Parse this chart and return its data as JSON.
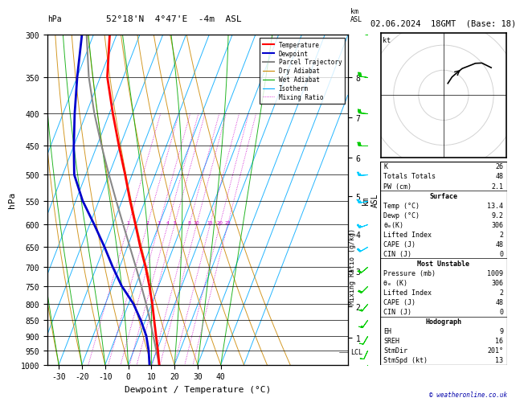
{
  "title_left": "52°18'N  4°47'E  -4m  ASL",
  "title_right": "02.06.2024  18GMT  (Base: 18)",
  "xlabel": "Dewpoint / Temperature (°C)",
  "ylabel_left": "hPa",
  "temp_min": -35,
  "temp_max": 40,
  "pressure_levels": [
    300,
    350,
    400,
    450,
    500,
    550,
    600,
    650,
    700,
    750,
    800,
    850,
    900,
    950,
    1000
  ],
  "km_asl_ticks": [
    1,
    2,
    3,
    4,
    5,
    6,
    7,
    8
  ],
  "km_asl_pressures": [
    907,
    808,
    710,
    620,
    541,
    470,
    406,
    350
  ],
  "lcl_pressure": 955,
  "temperature_profile": {
    "pressure": [
      1000,
      950,
      900,
      850,
      800,
      750,
      700,
      650,
      600,
      550,
      500,
      450,
      400,
      350,
      300
    ],
    "temp": [
      13.4,
      10.5,
      7.2,
      3.8,
      0.2,
      -4.0,
      -8.8,
      -14.5,
      -20.2,
      -26.5,
      -33.0,
      -40.5,
      -48.5,
      -57.0,
      -63.0
    ]
  },
  "dewpoint_profile": {
    "pressure": [
      1000,
      950,
      900,
      850,
      800,
      750,
      700,
      650,
      600,
      550,
      500,
      450,
      400,
      350,
      300
    ],
    "temp": [
      9.2,
      6.5,
      3.0,
      -2.0,
      -8.0,
      -16.0,
      -23.0,
      -30.0,
      -38.0,
      -47.0,
      -55.0,
      -60.0,
      -65.0,
      -70.0,
      -75.0
    ]
  },
  "parcel_trajectory": {
    "pressure": [
      1000,
      950,
      900,
      850,
      800,
      750,
      700,
      650,
      600,
      550,
      500,
      450,
      400,
      350,
      300
    ],
    "temp": [
      13.4,
      9.8,
      6.0,
      2.0,
      -2.5,
      -7.5,
      -13.0,
      -19.0,
      -25.5,
      -32.5,
      -40.0,
      -48.0,
      -56.5,
      -65.0,
      -73.0
    ]
  },
  "colors": {
    "temperature": "#ff0000",
    "dewpoint": "#0000cc",
    "parcel": "#888888",
    "dry_adiabat": "#cc8800",
    "wet_adiabat": "#00aa00",
    "isotherm": "#00aaff",
    "mixing_ratio": "#cc00cc",
    "background": "#ffffff"
  },
  "mixing_ratio_values": [
    1,
    2,
    3,
    4,
    5,
    8,
    10,
    15,
    20,
    25
  ],
  "wind_pressures": [
    1000,
    950,
    900,
    850,
    800,
    750,
    700,
    650,
    600,
    550,
    500,
    450,
    400,
    350,
    300
  ],
  "wind_speeds": [
    5,
    8,
    10,
    13,
    15,
    18,
    20,
    22,
    24,
    25,
    26,
    28,
    30,
    32,
    35
  ],
  "wind_dirs": [
    200,
    205,
    210,
    215,
    220,
    225,
    230,
    240,
    250,
    260,
    265,
    270,
    275,
    280,
    285
  ],
  "stats": {
    "K": 26,
    "Totals_Totals": 48,
    "PW_cm": "2.1",
    "Surface_Temp": "13.4",
    "Surface_Dewp": "9.2",
    "Surface_theta_e": 306,
    "Surface_LI": 2,
    "Surface_CAPE": 48,
    "Surface_CIN": 0,
    "MU_Pressure": 1009,
    "MU_theta_e": 306,
    "MU_LI": 2,
    "MU_CAPE": 48,
    "MU_CIN": 0,
    "EH": 9,
    "SREH": 16,
    "StmDir": "201°",
    "StmSpd_kt": 13
  }
}
